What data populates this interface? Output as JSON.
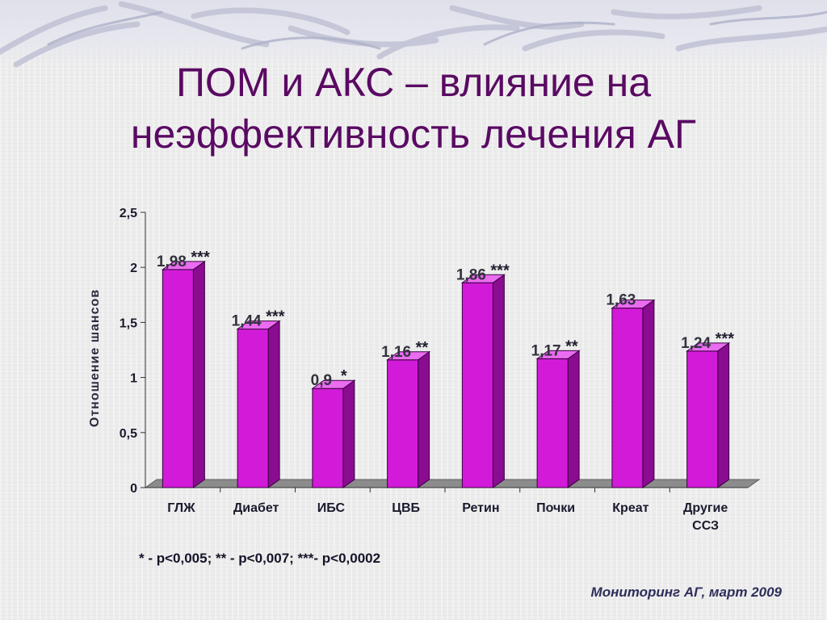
{
  "slide": {
    "title_line1": "ПОМ и АКС – влияние на",
    "title_line2": "неэффективность лечения АГ",
    "footnote": "* - p<0,005; ** - p<0,007; ***- p<0,0002",
    "source": "Мониторинг АГ, март 2009"
  },
  "colors": {
    "title": "#5a0a63",
    "bar_front": "#d21bd8",
    "bar_side": "#8a0c90",
    "bar_top": "#ea6cf0",
    "floor": "#8c8c8c"
  },
  "chart_data": {
    "type": "bar",
    "ylabel": "Отношение шансов",
    "xlabel": "",
    "ylim": [
      0,
      2.5
    ],
    "yticks": [
      "0",
      "0,5",
      "1",
      "1,5",
      "2",
      "2,5"
    ],
    "grid": false,
    "categories": [
      "ГЛЖ",
      "Диабет",
      "ИБС",
      "ЦВБ",
      "Ретин",
      "Почки",
      "Креат",
      "Другие ССЗ"
    ],
    "category_lines": [
      [
        "ГЛЖ"
      ],
      [
        "Диабет"
      ],
      [
        "ИБС"
      ],
      [
        "ЦВБ"
      ],
      [
        "Ретин"
      ],
      [
        "Почки"
      ],
      [
        "Креат"
      ],
      [
        "Другие",
        "ССЗ"
      ]
    ],
    "values": [
      1.98,
      1.44,
      0.9,
      1.16,
      1.86,
      1.17,
      1.63,
      1.24
    ],
    "value_labels": [
      "1,98",
      "1,44",
      "0,9",
      "1,16",
      "1,86",
      "1,17",
      "1,63",
      "1,24"
    ],
    "significance": [
      "***",
      "***",
      "*",
      "**",
      "***",
      "**",
      "",
      "***"
    ]
  }
}
